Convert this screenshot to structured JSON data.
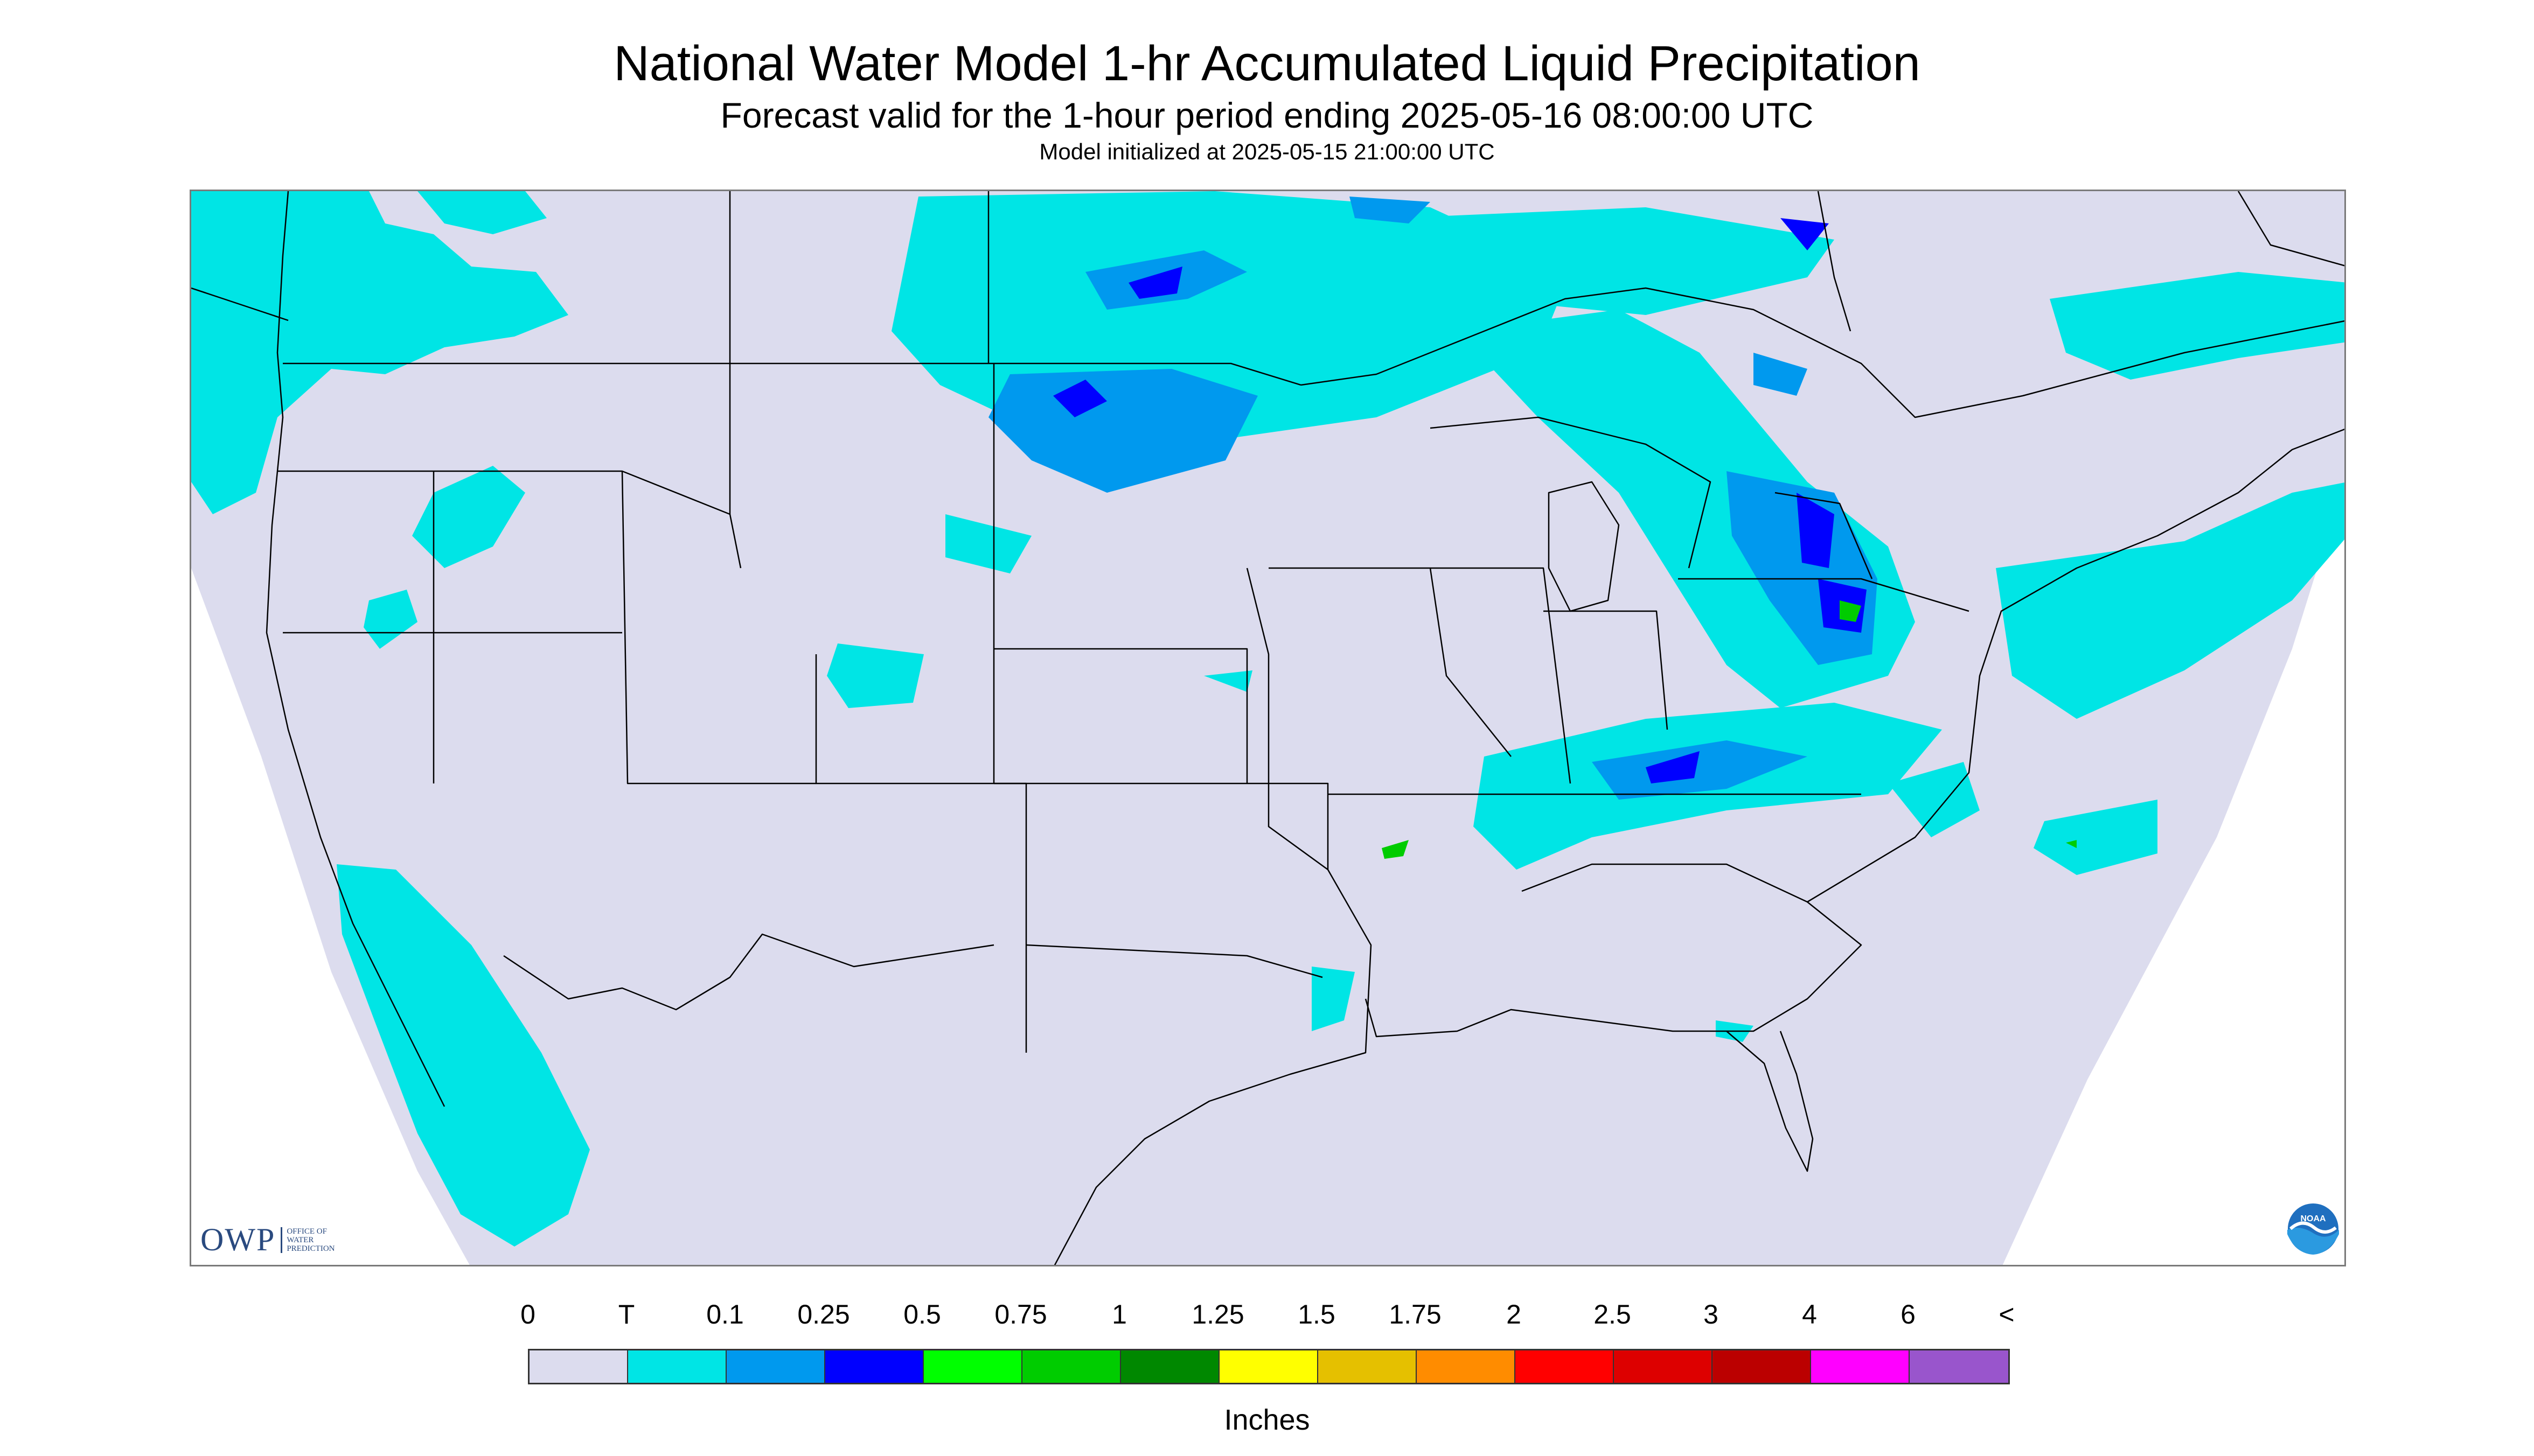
{
  "header": {
    "title": "National Water Model 1-hr Accumulated Liquid Precipitation",
    "subtitle": "Forecast valid for the 1-hour period ending 2025-05-16 08:00:00 UTC",
    "init_line": "Model initialized at 2025-05-15 21:00:00 UTC"
  },
  "logos": {
    "owp_abbrev": "OWP",
    "owp_line1": "OFFICE OF",
    "owp_line2": "WATER",
    "owp_line3": "PREDICTION",
    "noaa_text": "NOAA"
  },
  "legend": {
    "tick_labels": [
      "0",
      "T",
      "0.1",
      "0.25",
      "0.5",
      "0.75",
      "1",
      "1.25",
      "1.5",
      "1.75",
      "2",
      "2.5",
      "3",
      "4",
      "6",
      "<"
    ],
    "colors": [
      "#dcdcee",
      "#00e5e5",
      "#0099ee",
      "#0000ff",
      "#00ff00",
      "#00cc00",
      "#008800",
      "#ffff00",
      "#e5c000",
      "#ff8c00",
      "#ff0000",
      "#dd0000",
      "#bb0000",
      "#ff00ff",
      "#9955cc"
    ],
    "units": "Inches"
  },
  "map": {
    "background_color": "#dcdcee",
    "outside_domain_color": "#ffffff",
    "boundary_color": "#000000"
  }
}
